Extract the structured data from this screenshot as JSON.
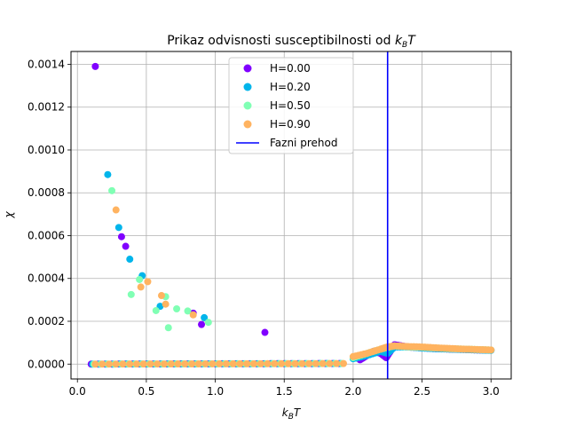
{
  "chart_data": {
    "type": "scatter",
    "title": "Prikaz odvisnosti susceptibilnosti od k_BT",
    "title_text": "Prikaz odvisnosti susceptibilnosti od ",
    "title_math": {
      "base": "k",
      "sub": "B",
      "tail": "T"
    },
    "xlabel_math": {
      "base": "k",
      "sub": "B",
      "tail": "T"
    },
    "ylabel": "χ",
    "xlim": [
      -0.0465,
      3.1465
    ],
    "ylim": [
      -6.94e-05,
      0.00146
    ],
    "xticks": [
      0.0,
      0.5,
      1.0,
      1.5,
      2.0,
      2.5,
      3.0
    ],
    "xtick_labels": [
      "0.0",
      "0.5",
      "1.0",
      "1.5",
      "2.0",
      "2.5",
      "3.0"
    ],
    "yticks": [
      0.0,
      0.0002,
      0.0004,
      0.0006,
      0.0008,
      0.001,
      0.0012,
      0.0014
    ],
    "ytick_labels": [
      "0.0000",
      "0.0002",
      "0.0004",
      "0.0006",
      "0.0008",
      "0.0010",
      "0.0012",
      "0.0014"
    ],
    "grid": true,
    "legend_position": "top-center",
    "vline": {
      "name": "Fazni prehod",
      "x": 2.25,
      "color": "#0000ff"
    },
    "baseline_x_range": [
      0.1,
      3.0
    ],
    "series": [
      {
        "name": "H=0.00",
        "color": "#8000ff",
        "points": [
          [
            0.13,
            0.00139
          ],
          [
            0.32,
            0.000595
          ],
          [
            0.35,
            0.00055
          ],
          [
            0.84,
            0.000238
          ],
          [
            0.9,
            0.000185
          ],
          [
            1.36,
            0.000148
          ]
        ],
        "baseline": [
          [
            2.05,
            2e-05
          ],
          [
            2.1,
            4e-05
          ],
          [
            2.15,
            6e-05
          ],
          [
            2.2,
            5e-05
          ],
          [
            2.24,
            3e-05
          ],
          [
            2.27,
            6e-05
          ],
          [
            2.3,
            9e-05
          ],
          [
            2.35,
            8.5e-05
          ],
          [
            2.4,
            8e-05
          ],
          [
            2.5,
            7.5e-05
          ],
          [
            2.6,
            7.2e-05
          ],
          [
            2.7,
            7e-05
          ],
          [
            2.8,
            6.8e-05
          ],
          [
            2.9,
            6.6e-05
          ],
          [
            3.0,
            6.5e-05
          ]
        ]
      },
      {
        "name": "H=0.20",
        "color": "#00b5eb",
        "points": [
          [
            0.22,
            0.000885
          ],
          [
            0.3,
            0.000638
          ],
          [
            0.38,
            0.00049
          ],
          [
            0.47,
            0.000413
          ],
          [
            0.6,
            0.00027
          ],
          [
            0.92,
            0.000217
          ]
        ],
        "baseline": [
          [
            2.0,
            2.5e-05
          ],
          [
            2.1,
            4e-05
          ],
          [
            2.2,
            6e-05
          ],
          [
            2.25,
            5e-05
          ],
          [
            2.3,
            8e-05
          ],
          [
            2.4,
            8e-05
          ],
          [
            2.5,
            7.5e-05
          ],
          [
            2.6,
            7.2e-05
          ],
          [
            2.7,
            7e-05
          ],
          [
            2.8,
            6.8e-05
          ],
          [
            2.9,
            6.6e-05
          ],
          [
            3.0,
            6.4e-05
          ]
        ]
      },
      {
        "name": "H=0.50",
        "color": "#80ffb4",
        "points": [
          [
            0.25,
            0.00081
          ],
          [
            0.39,
            0.000325
          ],
          [
            0.45,
            0.000395
          ],
          [
            0.57,
            0.00025
          ],
          [
            0.64,
            0.000315
          ],
          [
            0.66,
            0.00017
          ],
          [
            0.72,
            0.000258
          ],
          [
            0.8,
            0.000248
          ],
          [
            0.95,
            0.000195
          ]
        ],
        "baseline": [
          [
            2.0,
            3e-05
          ],
          [
            2.1,
            5e-05
          ],
          [
            2.2,
            7e-05
          ],
          [
            2.3,
            8.5e-05
          ],
          [
            2.4,
            8e-05
          ],
          [
            2.5,
            7.8e-05
          ],
          [
            2.6,
            7.5e-05
          ],
          [
            2.7,
            7.2e-05
          ],
          [
            2.8,
            7e-05
          ],
          [
            2.9,
            6.8e-05
          ],
          [
            3.0,
            6.6e-05
          ]
        ]
      },
      {
        "name": "H=0.90",
        "color": "#ffb360",
        "points": [
          [
            0.28,
            0.00072
          ],
          [
            0.46,
            0.00036
          ],
          [
            0.51,
            0.000385
          ],
          [
            0.61,
            0.00032
          ],
          [
            0.64,
            0.00028
          ],
          [
            0.84,
            0.00023
          ]
        ],
        "baseline": [
          [
            2.0,
            3.5e-05
          ],
          [
            2.1,
            5e-05
          ],
          [
            2.2,
            7e-05
          ],
          [
            2.25,
            8e-05
          ],
          [
            2.3,
            8.5e-05
          ],
          [
            2.4,
            8.2e-05
          ],
          [
            2.5,
            8e-05
          ],
          [
            2.6,
            7.6e-05
          ],
          [
            2.7,
            7.3e-05
          ],
          [
            2.8,
            7e-05
          ],
          [
            2.9,
            6.8e-05
          ],
          [
            3.0,
            6.6e-05
          ]
        ]
      }
    ]
  }
}
